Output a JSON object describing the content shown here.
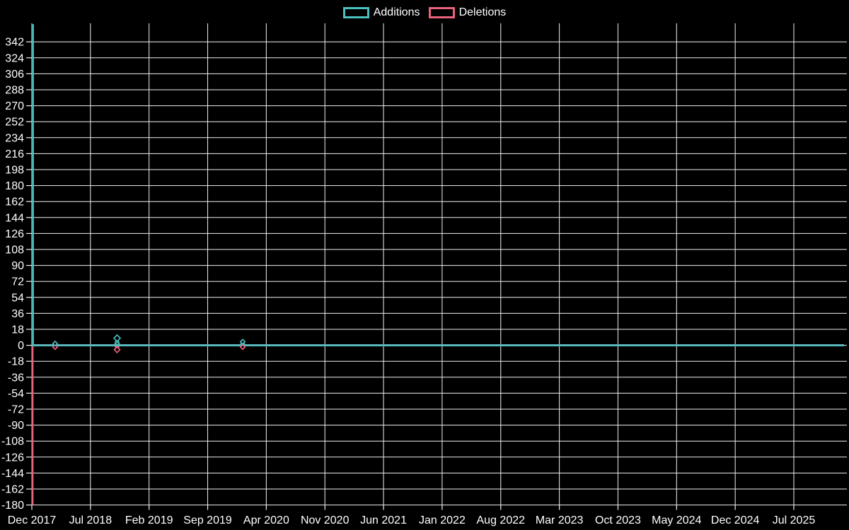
{
  "legend": {
    "items": [
      {
        "label": "Additions",
        "color": "#4bc0c0"
      },
      {
        "label": "Deletions",
        "color": "#e9637d"
      }
    ]
  },
  "chart_data": {
    "type": "line",
    "title": "",
    "legend_position": "top",
    "grid": true,
    "background": "#000000",
    "grid_color": "#f0f0f0",
    "text_color": "#ffffff",
    "x_labels": [
      "Dec 2017",
      "Jul 2018",
      "Feb 2019",
      "Sep 2019",
      "Apr 2020",
      "Nov 2020",
      "Jun 2021",
      "Jan 2022",
      "Aug 2022",
      "Mar 2023",
      "Oct 2023",
      "May 2024",
      "Dec 2024",
      "Jul 2025"
    ],
    "y_axis": {
      "min": -180,
      "max": 342,
      "step": 18,
      "plot_top_value": 362
    },
    "series": [
      {
        "name": "Additions",
        "color": "#4bc0c0",
        "baseline": 0
      },
      {
        "name": "Deletions",
        "color": "#e9637d",
        "baseline": 0
      }
    ],
    "points": [
      {
        "x_frac": 0.0,
        "approx_date": "Dec 2017",
        "additions": 362,
        "deletions": -180,
        "clipped_top": true
      },
      {
        "x_frac": 0.0286,
        "approx_date": "Mar 2018",
        "additions": 2,
        "deletions": -2
      },
      {
        "x_frac": 0.1046,
        "approx_date": "Oct 2018",
        "additions": 8,
        "deletions": -5
      },
      {
        "x_frac": 0.2587,
        "approx_date": "Jan 2020",
        "additions": 4,
        "deletions": -2
      }
    ]
  }
}
